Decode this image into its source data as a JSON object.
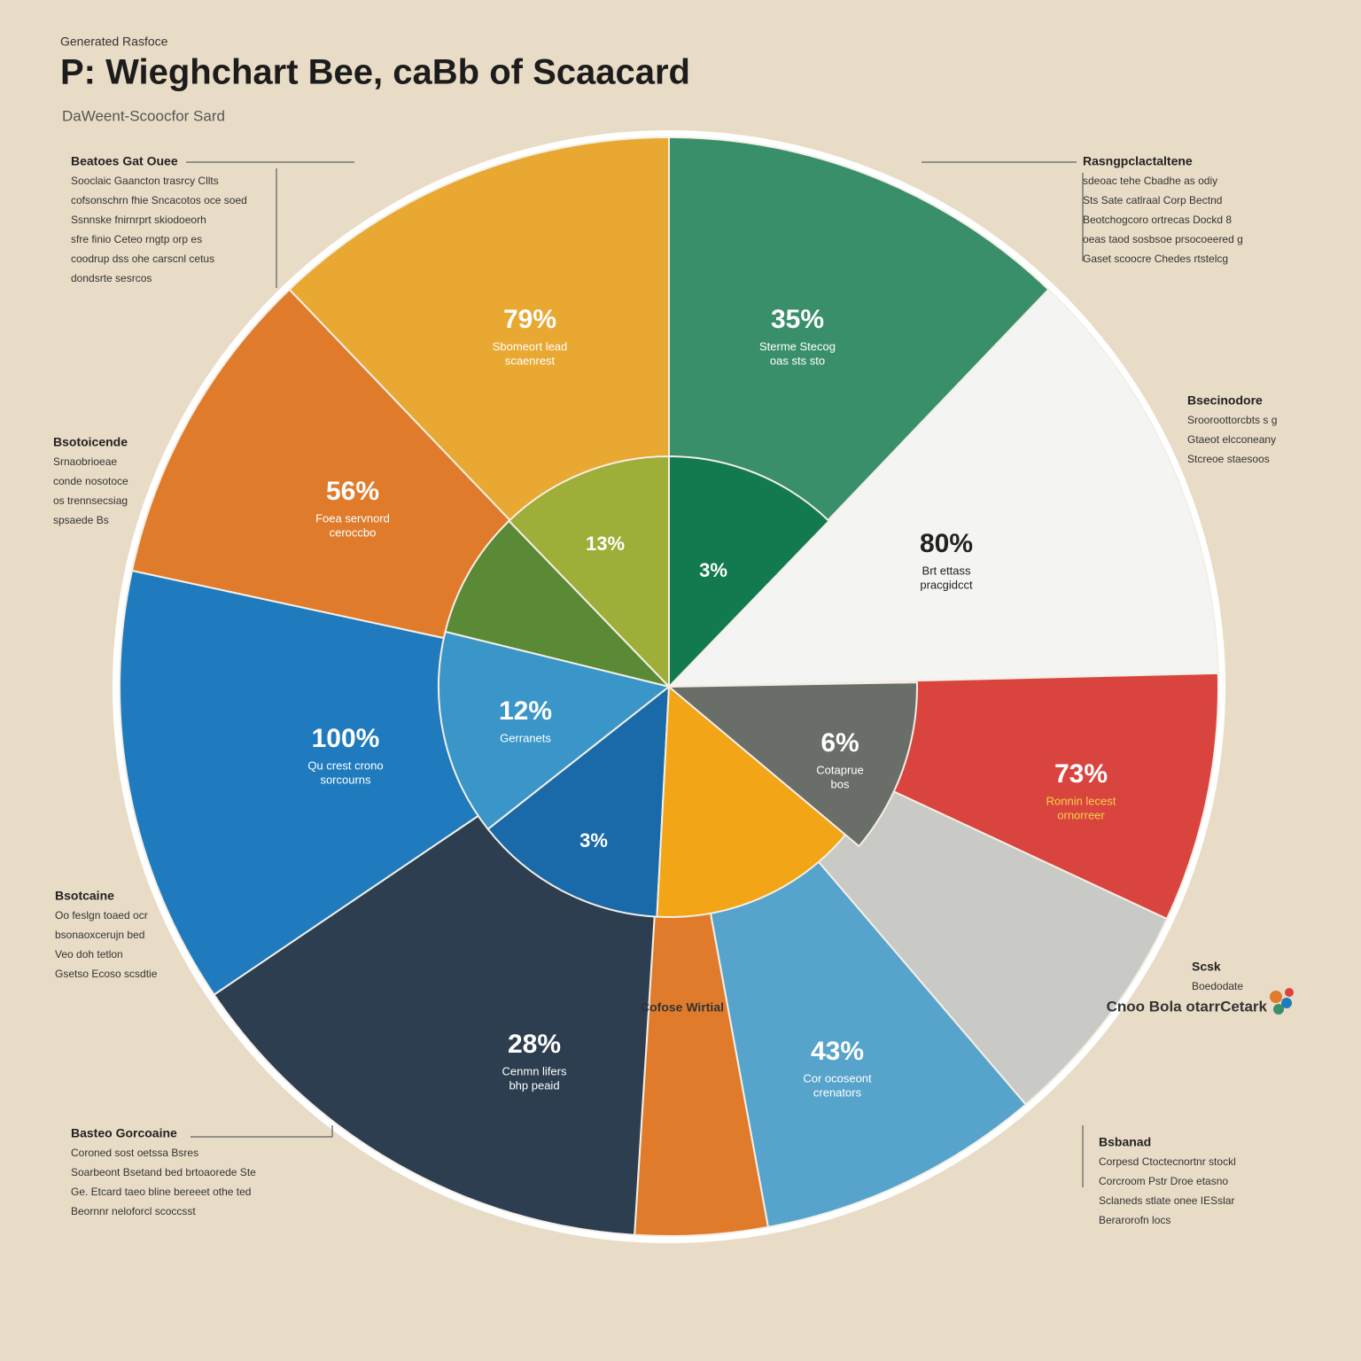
{
  "header": {
    "kicker": "Generated Rasfoce",
    "title": "P: Wieghchart Bee, caBb of Scaacard",
    "subtitle": "DaWeent-Scoocfor Sard"
  },
  "slices": [
    {
      "value": "79%",
      "caption": [
        "Sbomeort lead",
        "scaenrest"
      ]
    },
    {
      "value": "35%",
      "caption": [
        "Sterme Stecog",
        "oas sts sto"
      ]
    },
    {
      "value": "56%",
      "caption": [
        "Foea servnord",
        "ceroccbo"
      ]
    },
    {
      "value": "13%",
      "caption": []
    },
    {
      "value": "3%",
      "caption": []
    },
    {
      "value": "80%",
      "caption": [
        "Brt ettass",
        "pracgidcct"
      ]
    },
    {
      "value": "12%",
      "caption": [
        "Gerranets"
      ]
    },
    {
      "value": "100%",
      "caption": [
        "Qu crest crono",
        "sorcourns"
      ]
    },
    {
      "value": "3%",
      "caption": []
    },
    {
      "value": "6%",
      "caption": [
        "Cotaprue",
        "bos"
      ]
    },
    {
      "value": "73%",
      "caption": [
        "Ronnin lecest",
        "ornorreer"
      ]
    },
    {
      "value": "28%",
      "caption": [
        "Cenmn lifers",
        "bhp peaid"
      ]
    },
    {
      "value": "43%",
      "caption": [
        "Cor ocoseont",
        "crenators"
      ]
    }
  ],
  "annotations": [
    {
      "heading": "Beatoes Gat Ouee",
      "lines": [
        "Sooclaic Gaancton trasrcy Cllts",
        "cofsonschrn fhie Sncacotos oce soed",
        "Ssnnske fnirnrprt skiodoeorh",
        "sfre finio Ceteo rngtp orp es",
        "coodrup dss ohe carscnl cetus",
        "dondsrte sesrcos"
      ]
    },
    {
      "heading": "Bsotoicende",
      "lines": [
        "Srnaobrioeae",
        "conde nosotoce",
        "os trennsecsiag",
        "spsaede Bs"
      ]
    },
    {
      "heading": "Bsotcaine",
      "lines": [
        "Oo feslgn toaed ocr",
        "bsonaoxcerujn bed",
        "Veo doh tetlon",
        "Gsetso Ecoso scsdtie"
      ]
    },
    {
      "heading": "Basteo Gorcoaine",
      "lines": [
        "Coroned sost oetssa Bsres",
        "Soarbeont Bsetand bed brtoaorede Ste",
        "Ge. Etcard taeo bline bereeet othe ted",
        "Beornnr neloforcl scoccsst"
      ]
    },
    {
      "heading": "Rasngpclactaltene",
      "lines": [
        "sdeoac tehe Cbadhe as odiy",
        "Sts Sate catlraal Corp Bectnd",
        "Beotchogcoro ortrecas Dockd 8",
        "oeas taod sosbsoe prsocoeered g",
        "Gaset scoocre Chedes rtstelcg"
      ]
    },
    {
      "heading": "Bsecinodore",
      "lines": [
        "Srooroottorcbts s g",
        "Gtaeot elcconeany",
        "Stcreoe staesoos"
      ]
    },
    {
      "heading": "Scsk",
      "lines": [
        "Boedodate"
      ]
    },
    {
      "heading": "Bsbanad",
      "lines": [
        "Corpesd Ctoctecnortnr stockl",
        "Corcroom Pstr Droe etasno",
        "Sclaneds stlate onee IESslar",
        "Berarorofn locs"
      ]
    }
  ],
  "footer": {
    "center": "Cofose Wirtial",
    "brand": "Cnoo Bola otarrCetark"
  }
}
